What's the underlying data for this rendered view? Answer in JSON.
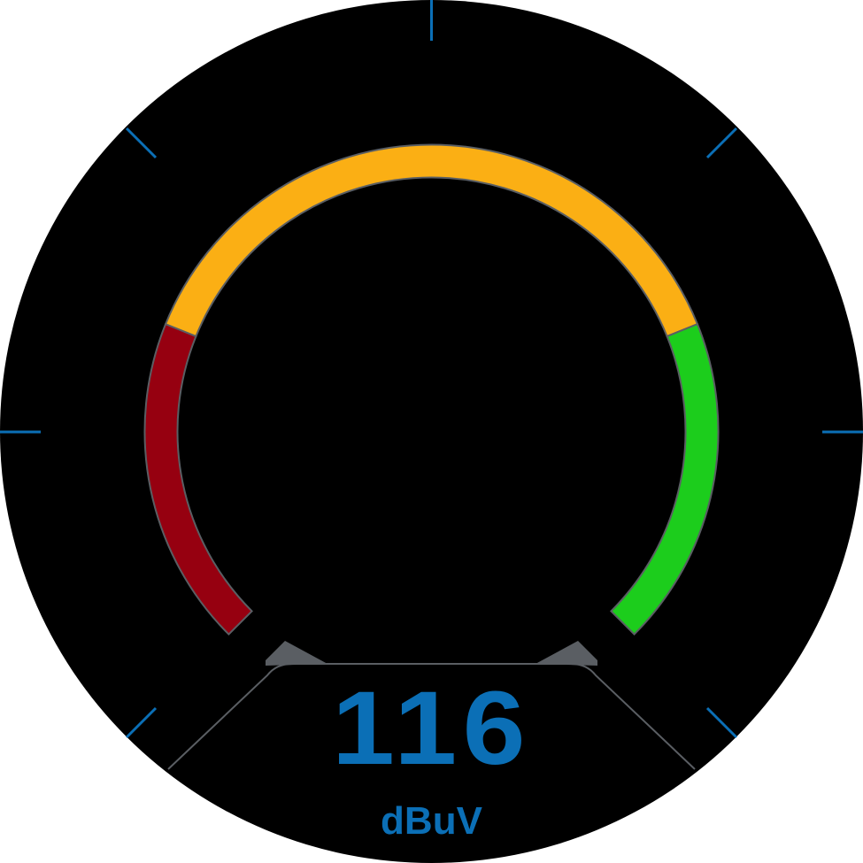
{
  "gauge": {
    "value": "116",
    "unit": "dBuV",
    "colors": {
      "face": "#000000",
      "accent": "#0b6fb6",
      "band_low": "#960010",
      "band_mid": "#fbaf14",
      "band_high": "#1ccd1c",
      "band_edge": "#5a5e63",
      "panel_edge": "#5a5e63"
    },
    "bands": [
      {
        "name": "low",
        "color": "#960010"
      },
      {
        "name": "mid",
        "color": "#fbaf14"
      },
      {
        "name": "high",
        "color": "#1ccd1c"
      }
    ]
  }
}
